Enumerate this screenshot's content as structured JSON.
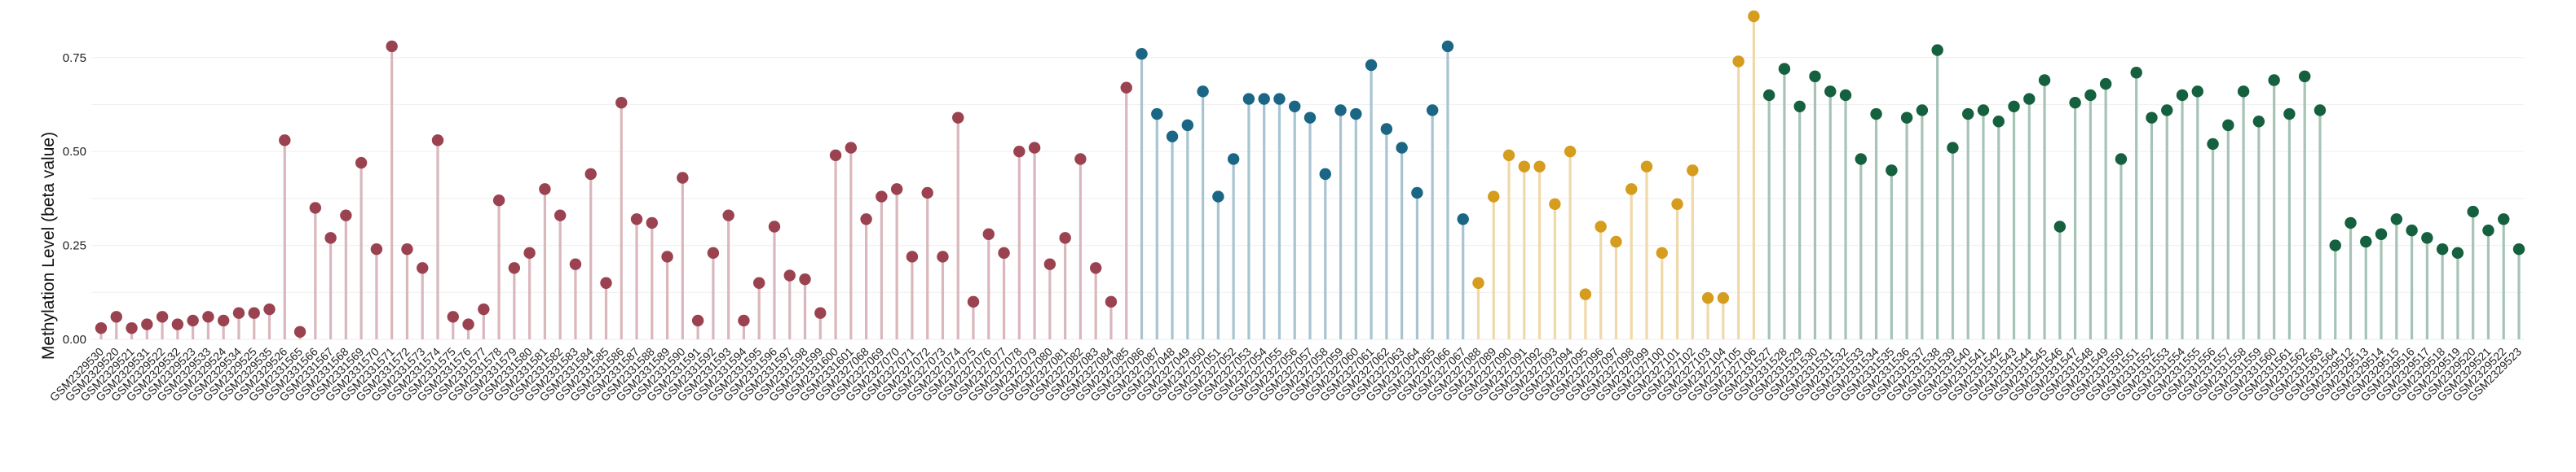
{
  "colors": {
    "group1": "#9b4250",
    "group2": "#1b6585",
    "group3": "#d59c1d",
    "group4": "#15603e"
  },
  "chart_data": {
    "type": "lollipop",
    "title": "",
    "xlabel": "",
    "ylabel": "Methylation Level (beta value)",
    "ylim": [
      0,
      0.86
    ],
    "yticks": [
      0,
      0.25,
      0.5,
      0.75
    ],
    "ytick_labels": [
      "0.00",
      "0.25",
      "0.50",
      "0.75"
    ],
    "grid": "horizontal",
    "legend": "none",
    "groups": [
      {
        "color_key": "group1",
        "samples": [
          "GSM2329530",
          "GSM2329520",
          "GSM2329521",
          "GSM2329531",
          "GSM2329522",
          "GSM2329532",
          "GSM2329523",
          "GSM2329533",
          "GSM2329524",
          "GSM2329534",
          "GSM2329525",
          "GSM2329535",
          "GSM2329526",
          "GSM2331565",
          "GSM2331566",
          "GSM2331567",
          "GSM2331568",
          "GSM2331569",
          "GSM2331570",
          "GSM2331571",
          "GSM2331572",
          "GSM2331573",
          "GSM2331574",
          "GSM2331575",
          "GSM2331576",
          "GSM2331577",
          "GSM2331578",
          "GSM2331579",
          "GSM2331580",
          "GSM2331581",
          "GSM2331582",
          "GSM2331583",
          "GSM2331584",
          "GSM2331585",
          "GSM2331586",
          "GSM2331587",
          "GSM2331588",
          "GSM2331589",
          "GSM2331590",
          "GSM2331591",
          "GSM2331592",
          "GSM2331593",
          "GSM2331594",
          "GSM2331595",
          "GSM2331596",
          "GSM2331597",
          "GSM2331598",
          "GSM2331599",
          "GSM2331600",
          "GSM2331601",
          "GSM2327068",
          "GSM2327069",
          "GSM2327070",
          "GSM2327071",
          "GSM2327072",
          "GSM2327073",
          "GSM2327074",
          "GSM2327075",
          "GSM2327076",
          "GSM2327077",
          "GSM2327078",
          "GSM2327079",
          "GSM2327080",
          "GSM2327081",
          "GSM2327082",
          "GSM2327083",
          "GSM2327084",
          "GSM2327085"
        ],
        "values": [
          0.03,
          0.06,
          0.03,
          0.04,
          0.06,
          0.04,
          0.05,
          0.06,
          0.05,
          0.07,
          0.07,
          0.08,
          0.53,
          0.02,
          0.35,
          0.27,
          0.33,
          0.47,
          0.24,
          0.78,
          0.24,
          0.19,
          0.53,
          0.06,
          0.04,
          0.08,
          0.37,
          0.19,
          0.23,
          0.4,
          0.33,
          0.2,
          0.44,
          0.15,
          0.63,
          0.32,
          0.31,
          0.22,
          0.43,
          0.05,
          0.23,
          0.33,
          0.05,
          0.15,
          0.3,
          0.17,
          0.16,
          0.07,
          0.49,
          0.51,
          0.32,
          0.38,
          0.4,
          0.22,
          0.39,
          0.22,
          0.59,
          0.1,
          0.28,
          0.23,
          0.5,
          0.51,
          0.2,
          0.27,
          0.48,
          0.19,
          0.1,
          0.67
        ]
      },
      {
        "color_key": "group2",
        "samples": [
          "GSM2327086",
          "GSM2327087",
          "GSM2327048",
          "GSM2327049",
          "GSM2327050",
          "GSM2327051",
          "GSM2327052",
          "GSM2327053",
          "GSM2327054",
          "GSM2327055",
          "GSM2327056",
          "GSM2327057",
          "GSM2327058",
          "GSM2327059",
          "GSM2327060",
          "GSM2327061",
          "GSM2327062",
          "GSM2327063",
          "GSM2327064",
          "GSM2327065",
          "GSM2327066",
          "GSM2327067"
        ],
        "values": [
          0.76,
          0.6,
          0.54,
          0.57,
          0.66,
          0.38,
          0.48,
          0.64,
          0.64,
          0.64,
          0.62,
          0.59,
          0.44,
          0.61,
          0.6,
          0.73,
          0.56,
          0.51,
          0.39,
          0.61,
          0.78,
          0.32
        ]
      },
      {
        "color_key": "group3",
        "samples": [
          "GSM2327088",
          "GSM2327089",
          "GSM2327090",
          "GSM2327091",
          "GSM2327092",
          "GSM2327093",
          "GSM2327094",
          "GSM2327095",
          "GSM2327096",
          "GSM2327097",
          "GSM2327098",
          "GSM2327099",
          "GSM2327100",
          "GSM2327101",
          "GSM2327102",
          "GSM2327103",
          "GSM2327104",
          "GSM2327105",
          "GSM2327106"
        ],
        "values": [
          0.15,
          0.38,
          0.49,
          0.46,
          0.46,
          0.36,
          0.5,
          0.12,
          0.3,
          0.26,
          0.4,
          0.46,
          0.23,
          0.36,
          0.45,
          0.11,
          0.11,
          0.74,
          0.86
        ]
      },
      {
        "color_key": "group4",
        "samples": [
          "GSM2331527",
          "GSM2331528",
          "GSM2331529",
          "GSM2331530",
          "GSM2331531",
          "GSM2331532",
          "GSM2331533",
          "GSM2331534",
          "GSM2331535",
          "GSM2331536",
          "GSM2331537",
          "GSM2331538",
          "GSM2331539",
          "GSM2331540",
          "GSM2331541",
          "GSM2331542",
          "GSM2331543",
          "GSM2331544",
          "GSM2331545",
          "GSM2331546",
          "GSM2331547",
          "GSM2331548",
          "GSM2331549",
          "GSM2331550",
          "GSM2331551",
          "GSM2331552",
          "GSM2331553",
          "GSM2331554",
          "GSM2331555",
          "GSM2331556",
          "GSM2331557",
          "GSM2331558",
          "GSM2331559",
          "GSM2331560",
          "GSM2331561",
          "GSM2331562",
          "GSM2331563",
          "GSM2331564",
          "GSM2329512",
          "GSM2329513",
          "GSM2329514",
          "GSM2329515",
          "GSM2329516",
          "GSM2329517",
          "GSM2329518",
          "GSM2329519",
          "GSM2329520",
          "GSM2329521",
          "GSM2329522",
          "GSM2329523"
        ],
        "values": [
          0.65,
          0.72,
          0.62,
          0.7,
          0.66,
          0.65,
          0.48,
          0.6,
          0.45,
          0.59,
          0.61,
          0.77,
          0.51,
          0.6,
          0.61,
          0.58,
          0.62,
          0.64,
          0.69,
          0.3,
          0.63,
          0.65,
          0.68,
          0.48,
          0.71,
          0.59,
          0.61,
          0.65,
          0.66,
          0.52,
          0.57,
          0.66,
          0.58,
          0.69,
          0.6,
          0.7,
          0.61,
          0.25,
          0.31,
          0.26,
          0.28,
          0.32,
          0.29,
          0.27,
          0.24,
          0.23,
          0.34,
          0.29,
          0.32,
          0.24
        ]
      }
    ]
  }
}
